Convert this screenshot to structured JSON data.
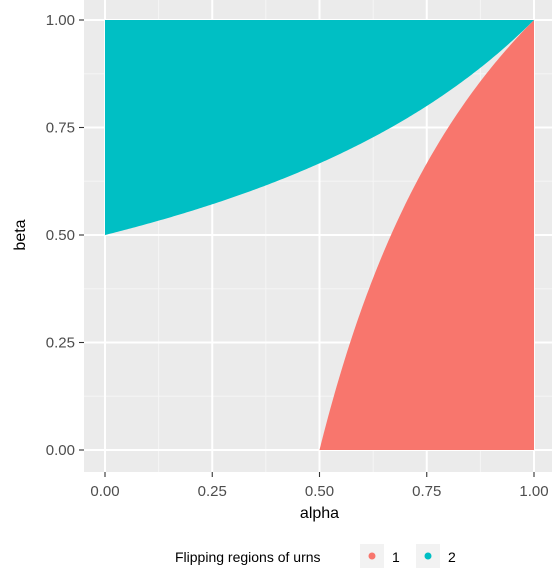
{
  "chart_data": {
    "type": "area",
    "xlabel": "alpha",
    "ylabel": "beta",
    "xlim": [
      0,
      1
    ],
    "ylim": [
      0,
      1
    ],
    "x_ticks": [
      "0.00",
      "0.25",
      "0.50",
      "0.75",
      "1.00"
    ],
    "y_ticks": [
      "0.00",
      "0.25",
      "0.50",
      "0.75",
      "1.00"
    ],
    "grid": true,
    "background": "#ebebeb",
    "legend": {
      "title": "Flipping regions of urns",
      "position": "bottom",
      "entries": [
        {
          "label": "1",
          "color": "#f8766d"
        },
        {
          "label": "2",
          "color": "#00bfc4"
        }
      ]
    },
    "series": [
      {
        "name": "1",
        "color": "#f8766d",
        "boundary": [
          [
            0.5,
            0.0
          ],
          [
            0.55,
            0.182
          ],
          [
            0.6,
            0.333
          ],
          [
            0.65,
            0.462
          ],
          [
            0.7,
            0.571
          ],
          [
            0.75,
            0.667
          ],
          [
            0.8,
            0.75
          ],
          [
            0.85,
            0.824
          ],
          [
            0.9,
            0.889
          ],
          [
            0.95,
            0.947
          ],
          [
            1.0,
            1.0
          ],
          [
            1.0,
            0.0
          ]
        ]
      },
      {
        "name": "2",
        "color": "#00bfc4",
        "boundary": [
          [
            0.0,
            1.0
          ],
          [
            0.0,
            0.5
          ],
          [
            0.1,
            0.526
          ],
          [
            0.2,
            0.556
          ],
          [
            0.3,
            0.588
          ],
          [
            0.4,
            0.625
          ],
          [
            0.5,
            0.667
          ],
          [
            0.6,
            0.714
          ],
          [
            0.7,
            0.769
          ],
          [
            0.8,
            0.833
          ],
          [
            0.9,
            0.909
          ],
          [
            1.0,
            1.0
          ]
        ]
      }
    ]
  }
}
